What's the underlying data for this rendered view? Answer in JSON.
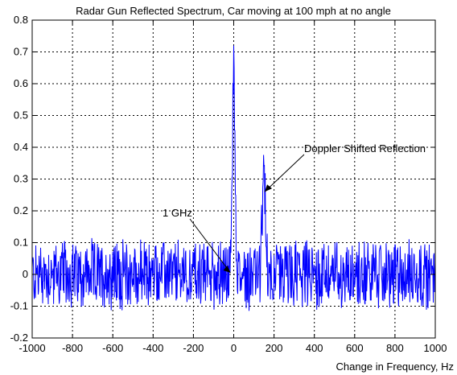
{
  "chart_data": {
    "type": "line",
    "title": "Radar Gun Reflected Spectrum, Car moving at 100 mph at no angle",
    "xlabel": "Change in Frequency, Hz",
    "ylabel": "",
    "xlim": [
      -1000,
      1000
    ],
    "ylim": [
      -0.2,
      0.8
    ],
    "xticks": [
      -1000,
      -800,
      -600,
      -400,
      -200,
      0,
      200,
      400,
      600,
      800,
      1000
    ],
    "yticks": [
      -0.2,
      -0.1,
      0,
      0.1,
      0.2,
      0.3,
      0.4,
      0.5,
      0.6,
      0.7,
      0.8
    ],
    "xtick_labels": [
      "-1000",
      "-800",
      "-600",
      "-400",
      "-200",
      "0",
      "200",
      "400",
      "600",
      "800",
      "1000"
    ],
    "ytick_labels": [
      "-0.2",
      "-0.1",
      "0",
      "0.1",
      "0.2",
      "0.3",
      "0.4",
      "0.5",
      "0.6",
      "0.7",
      "0.8"
    ],
    "grid": true,
    "line_color": "#0000ff",
    "noise_band": [
      -0.12,
      0.11
    ],
    "peaks": [
      {
        "x": 0,
        "y": 0.72
      },
      {
        "x": 150,
        "y": 0.34
      }
    ],
    "annotations": [
      {
        "text": "1 GHz",
        "point": {
          "x": 0,
          "y": 0.0
        }
      },
      {
        "text": "Doppler Shifted Reflection",
        "point": {
          "x": 150,
          "y": 0.26
        }
      }
    ]
  }
}
